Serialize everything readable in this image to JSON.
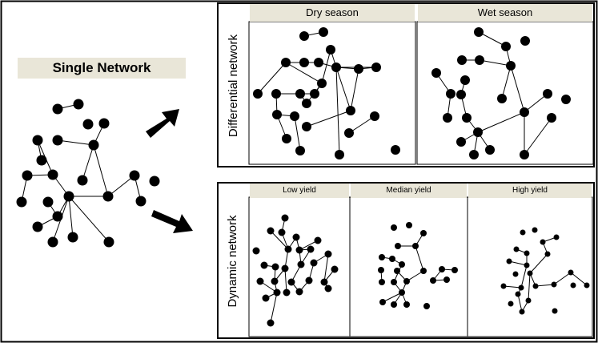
{
  "single_network": {
    "title": "Single Network"
  },
  "differential_network": {
    "label": "Differential network",
    "panels": [
      {
        "title": "Dry season"
      },
      {
        "title": "Wet season"
      }
    ]
  },
  "dynamic_network": {
    "label": "Dynamic network",
    "panels": [
      {
        "title": "Low yield"
      },
      {
        "title": "Median yield"
      },
      {
        "title": "High yield"
      }
    ]
  },
  "colors": {
    "frame": "#000000",
    "title_background": "#e9e6d8",
    "node": "#000000",
    "edge": "#000000"
  }
}
